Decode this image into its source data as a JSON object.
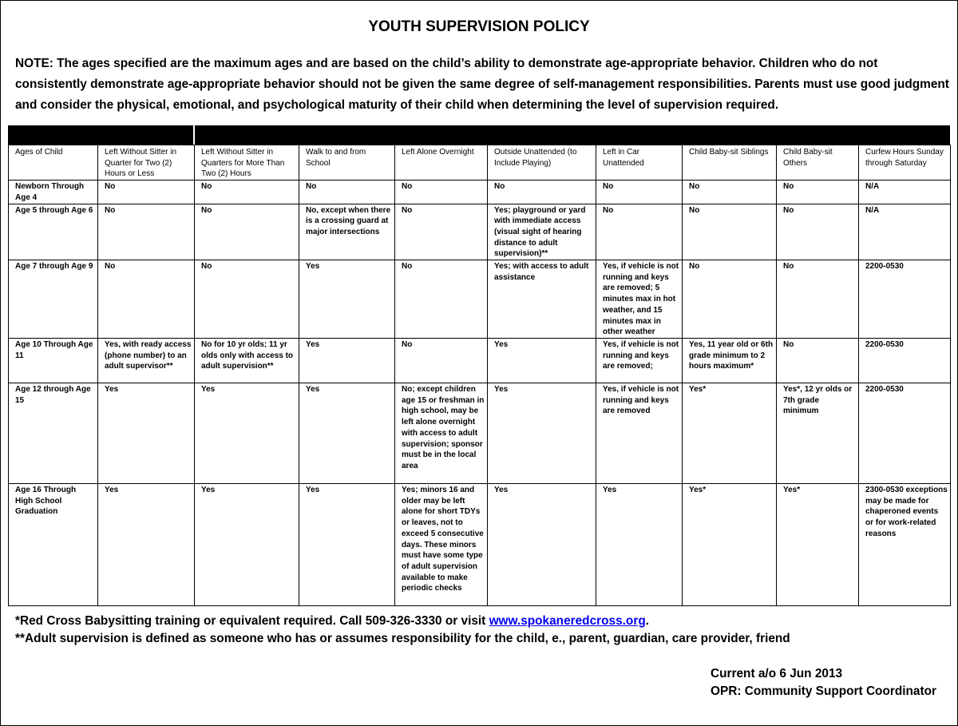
{
  "header": {
    "title": "YOUTH SUPERVISION POLICY",
    "note": "NOTE:  The ages specified are the maximum ages and are based on the child’s ability to demonstrate age-appropriate behavior.  Children who do not consistently demonstrate age-appropriate behavior should not be given the same degree of self-management responsibilities.  Parents must use good judgment and consider the physical, emotional, and psychological maturity of their child when determining the level of supervision required."
  },
  "table": {
    "columns": [
      "Ages of Child",
      "Left Without Sitter in Quarter for Two (2) Hours or Less",
      "Left Without Sitter in Quarters for More Than Two (2) Hours",
      "Walk to and from School",
      "Left Alone Overnight",
      "Outside Unattended (to Include Playing)",
      "Left in Car Unattended",
      "Child Baby-sit Siblings",
      "Child Baby-sit Others",
      "Curfew Hours Sunday through Saturday"
    ],
    "rows": [
      [
        "Newborn Through Age 4",
        "No",
        "No",
        "No",
        "No",
        "No",
        "No",
        "No",
        "No",
        "N/A"
      ],
      [
        "Age 5 through Age 6",
        "No",
        "No",
        "No, except when there is a crossing guard at major intersections",
        "No",
        "Yes; playground or yard with immediate access (visual sight of hearing distance to adult supervision)**",
        "No",
        "No",
        "No",
        "N/A"
      ],
      [
        "Age 7 through Age 9",
        "No",
        "No",
        "Yes",
        "No",
        "Yes; with access to adult assistance",
        "Yes, if vehicle is not running and keys are removed; 5 minutes max in hot weather, and 15 minutes max in other weather",
        "No",
        "No",
        "2200-0530"
      ],
      [
        "Age 10 Through Age 11",
        "Yes, with ready access (phone number) to an adult supervisor**",
        "No for 10 yr olds; 11 yr olds only with access to adult supervision**",
        "Yes",
        "No",
        "Yes",
        "Yes, if vehicle is not running and keys are removed;",
        "Yes, 11 year old or 6th grade minimum to 2 hours maximum*",
        "No",
        "2200-0530"
      ],
      [
        "Age 12 through Age 15",
        "Yes",
        "Yes",
        "Yes",
        "No; except children age 15 or freshman in high school, may be left alone overnight with access to adult supervision; sponsor must be in the local area",
        "Yes",
        "Yes, if vehicle is not running and keys are removed",
        "Yes*",
        "Yes*, 12 yr olds or 7th grade minimum",
        "2200-0530"
      ],
      [
        "Age 16 Through High School Graduation",
        "Yes",
        "Yes",
        "Yes",
        "Yes; minors 16 and older may be left alone for short TDYs or leaves, not to exceed 5 consecutive days. These minors must have some type of adult supervision available to make periodic checks",
        "Yes",
        "Yes",
        "Yes*",
        "Yes*",
        "2300-0530 exceptions may be made for chaperoned events or for work-related reasons"
      ]
    ]
  },
  "footnotes": {
    "first": {
      "text": "*Red Cross Babysitting training or equivalent required.  Call 509-326-3330 or visit ",
      "link": "www.spokaneredcross.org",
      "end": "."
    },
    "second": "**Adult supervision is defined as someone who has or assumes responsibility for the child, e., parent, guardian, care provider, friend"
  },
  "footer": {
    "current": "Current a/o 6 Jun 2013",
    "opr": "OPR: Community Support Coordinator"
  }
}
